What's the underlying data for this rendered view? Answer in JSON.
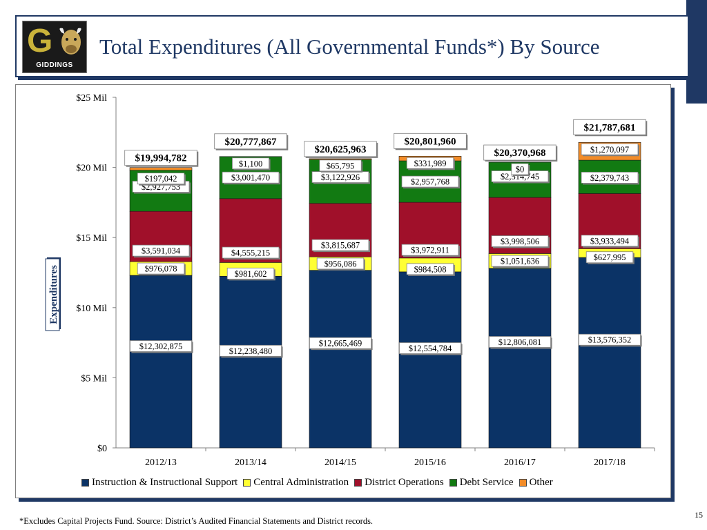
{
  "header": {
    "title": "Total Expenditures (All Governmental Funds*) By Source",
    "logo_text": "GIDDINGS"
  },
  "footer": {
    "footnote": "*Excludes Capital Projects Fund. Source: District’s Audited Financial Statements and District records.",
    "page_number": "15"
  },
  "colors": {
    "instruction": "#0b3366",
    "central_admin": "#ffff33",
    "district_ops": "#a0102a",
    "debt_service": "#127a12",
    "other": "#f28c28",
    "title": "#1f3864"
  },
  "chart_data": {
    "type": "bar",
    "stacked": true,
    "title": "",
    "xlabel": "",
    "ylabel": "Expenditures",
    "ylim": [
      0,
      25000000
    ],
    "yticks": [
      0,
      5000000,
      10000000,
      15000000,
      20000000,
      25000000
    ],
    "ytick_labels": [
      "$0",
      "$5 Mil",
      "$10 Mil",
      "$15 Mil",
      "$20 Mil",
      "$25 Mil"
    ],
    "categories": [
      "2012/13",
      "2013/14",
      "2014/15",
      "2015/16",
      "2016/17",
      "2017/18"
    ],
    "series": [
      {
        "key": "instruction",
        "name": "Instruction & Instructional Support",
        "values": [
          12302875,
          12238480,
          12665469,
          12554784,
          12806081,
          13576352
        ],
        "labels": [
          "$12,302,875",
          "$12,238,480",
          "$12,665,469",
          "$12,554,784",
          "$12,806,081",
          "$13,576,352"
        ]
      },
      {
        "key": "central_admin",
        "name": "Central Administration",
        "values": [
          976078,
          981602,
          956086,
          984508,
          1051636,
          627995
        ],
        "labels": [
          "$976,078",
          "$981,602",
          "$956,086",
          "$984,508",
          "$1,051,636",
          "$627,995"
        ]
      },
      {
        "key": "district_ops",
        "name": "District Operations",
        "values": [
          3591034,
          4555215,
          3815687,
          3972911,
          3998506,
          3933494
        ],
        "labels": [
          "$3,591,034",
          "$4,555,215",
          "$3,815,687",
          "$3,972,911",
          "$3,998,506",
          "$3,933,494"
        ]
      },
      {
        "key": "debt_service",
        "name": "Debt Service",
        "values": [
          2927753,
          3001470,
          3122926,
          2957768,
          2514745,
          2379743
        ],
        "labels": [
          "$2,927,753",
          "$3,001,470",
          "$3,122,926",
          "$2,957,768",
          "$2,514,745",
          "$2,379,743"
        ]
      },
      {
        "key": "other",
        "name": "Other",
        "values": [
          197042,
          1100,
          65795,
          331989,
          0,
          1270097
        ],
        "labels": [
          "$197,042",
          "$1,100",
          "$65,795",
          "$331,989",
          "$0",
          "$1,270,097"
        ]
      }
    ],
    "totals": [
      19994782,
      20777867,
      20625963,
      20801960,
      20370968,
      21787681
    ],
    "total_labels": [
      "$19,994,782",
      "$20,777,867",
      "$20,625,963",
      "$20,801,960",
      "$20,370,968",
      "$21,787,681"
    ],
    "legend_position": "bottom"
  }
}
